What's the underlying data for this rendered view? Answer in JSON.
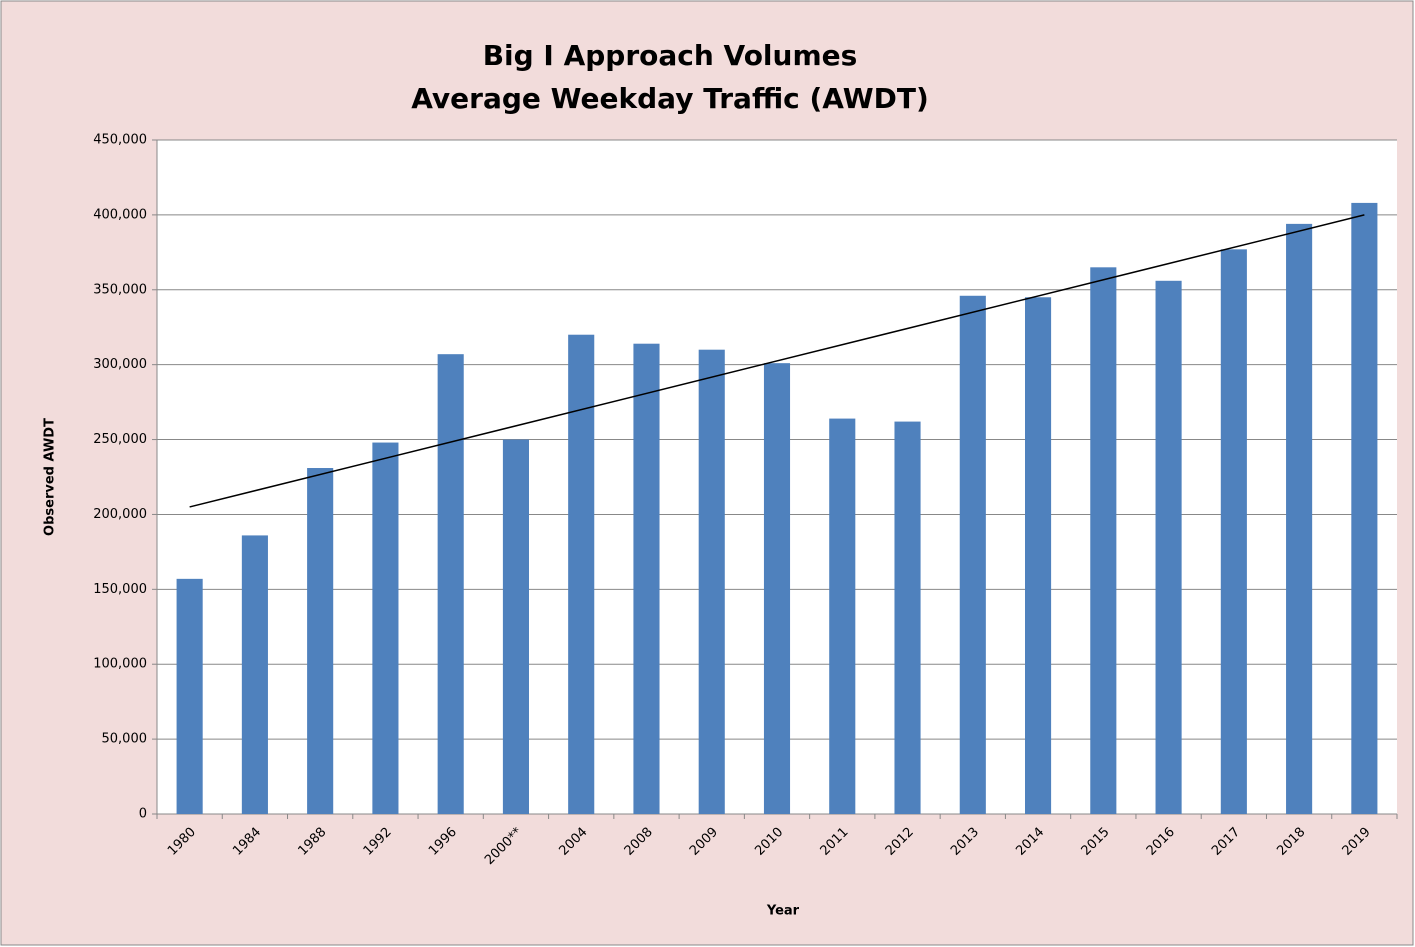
{
  "chart_data": {
    "type": "bar",
    "title": "Big I Approach Volumes",
    "subtitle": "Average Weekday Traffic (AWDT)",
    "x_label": "Year",
    "y_label": "Observed AWDT",
    "categories": [
      "1980",
      "1984",
      "1988",
      "1992",
      "1996",
      "2000**",
      "2004",
      "2008",
      "2009",
      "2010",
      "2011",
      "2012",
      "2013",
      "2014",
      "2015",
      "2016",
      "2017",
      "2018",
      "2019"
    ],
    "values": [
      157000,
      186000,
      231000,
      248000,
      307000,
      250000,
      320000,
      314000,
      310000,
      301000,
      264000,
      262000,
      346000,
      345000,
      365000,
      356000,
      377000,
      394000,
      408000
    ],
    "color": "#4f81bd",
    "trendline": {
      "values": [
        205000,
        400000
      ],
      "color": "#000000"
    },
    "ylim": [
      0,
      450000
    ],
    "yticks": [
      0,
      {
        "value": 50000,
        "label": "50,000"
      },
      {
        "value": 100000,
        "label": "100,000"
      },
      {
        "value": 150000,
        "label": "150,000"
      },
      {
        "value": 200000,
        "label": "200,000"
      },
      {
        "value": 250000,
        "label": "250,000"
      },
      {
        "value": 300000,
        "label": "300,000"
      },
      {
        "value": 350000,
        "label": "350,000"
      },
      {
        "value": 400000,
        "label": "400,000"
      },
      {
        "value": 450000,
        "label": "450,000"
      }
    ],
    "grid": true
  }
}
